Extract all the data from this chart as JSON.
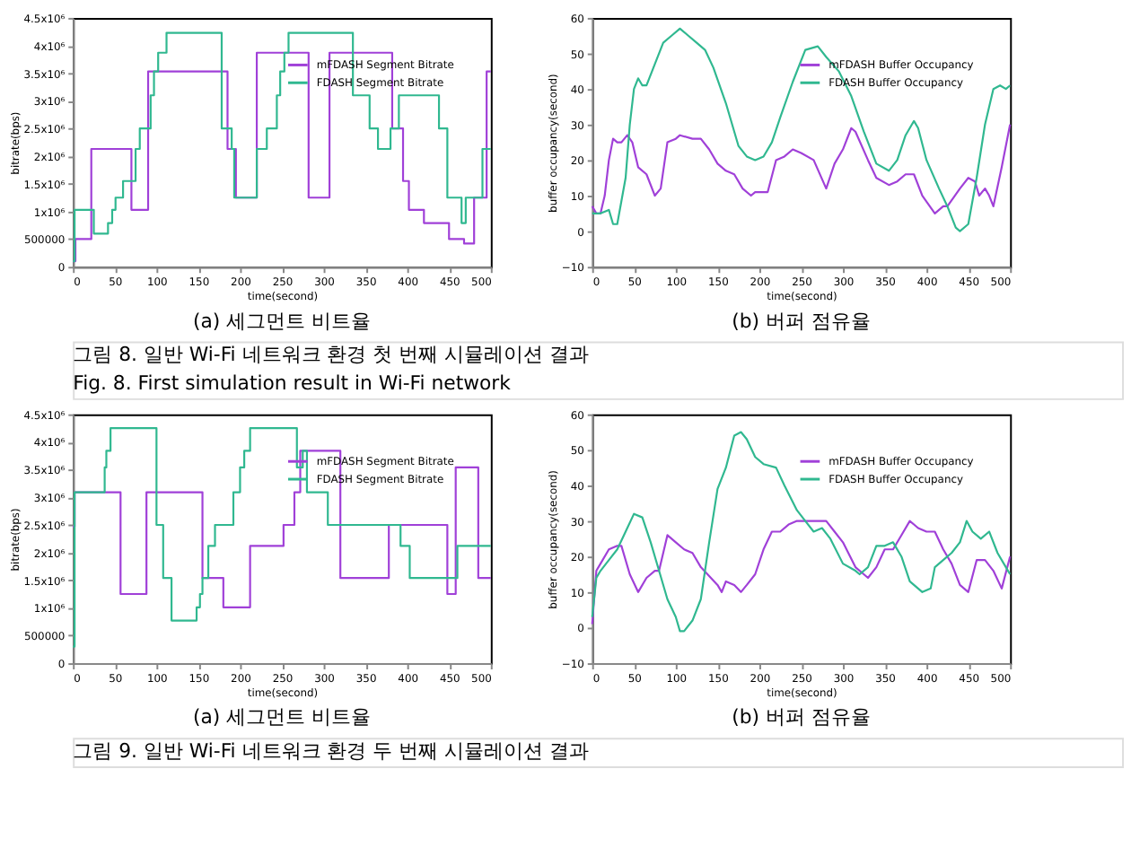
{
  "chart_data": [
    {
      "type": "step",
      "title": "(a) 세그먼트 비트율",
      "xlabel": "time(second)",
      "ylabel": "bitrate(bps)",
      "legend": "top right",
      "grid": false,
      "xlim": [
        0,
        500
      ],
      "xticks": [
        0,
        50,
        100,
        150,
        200,
        250,
        300,
        350,
        400,
        450,
        500
      ],
      "ylim": [
        0,
        4500000
      ],
      "yticks": [
        0,
        {
          "value": 500000,
          "label": "500000"
        },
        {
          "value": 1000000,
          "label": "1x10⁶"
        },
        {
          "value": 1500000,
          "label": "1.5x10⁶"
        },
        {
          "value": 2000000,
          "label": "2x10⁶"
        },
        {
          "value": 2500000,
          "label": "2.5x10⁶"
        },
        {
          "value": 3000000,
          "label": "3x10⁶"
        },
        {
          "value": 3500000,
          "label": "3.5x10⁶"
        },
        {
          "value": 4000000,
          "label": "4x10⁶"
        },
        {
          "value": 4500000,
          "label": "4.5x10⁶"
        }
      ],
      "series": [
        {
          "name": "mFDASH Segment Bitrate",
          "color": "#a040d8",
          "x": [
            0,
            3,
            22,
            70,
            90,
            185,
            195,
            220,
            282,
            307,
            382,
            395,
            402,
            420,
            450,
            468,
            480,
            495,
            500
          ],
          "values": [
            100000,
            500000,
            2130000,
            1030000,
            3530000,
            2130000,
            1250000,
            3870000,
            1250000,
            3870000,
            2500000,
            1550000,
            1030000,
            790000,
            500000,
            420000,
            1250000,
            3530000,
            3530000
          ]
        },
        {
          "name": "FDASH Segment Bitrate",
          "color": "#30b890",
          "x": [
            0,
            2,
            25,
            42,
            47,
            51,
            60,
            75,
            80,
            93,
            97,
            102,
            112,
            178,
            190,
            193,
            220,
            232,
            244,
            248,
            253,
            258,
            335,
            355,
            365,
            380,
            390,
            438,
            448,
            465,
            470,
            490,
            500
          ],
          "values": [
            100000,
            1030000,
            600000,
            790000,
            1030000,
            1250000,
            1550000,
            2130000,
            2500000,
            3100000,
            3530000,
            3870000,
            4230000,
            2500000,
            2130000,
            1250000,
            2130000,
            2500000,
            3100000,
            3530000,
            3870000,
            4230000,
            3100000,
            2500000,
            2130000,
            2500000,
            3100000,
            2500000,
            1250000,
            790000,
            1250000,
            2130000,
            2130000
          ]
        }
      ]
    },
    {
      "type": "line",
      "title": "(b) 버퍼 점유율",
      "xlabel": "time(second)",
      "ylabel": "buffer occupancy(second)",
      "legend": "top right",
      "grid": false,
      "annotations": [
        "그림 8. 일반 Wi-Fi 네트워크 환경 첫 번째 시뮬레이션 결과",
        "Fig. 8. First simulation result in Wi-Fi network"
      ],
      "xlim": [
        0,
        500
      ],
      "xticks": [
        0,
        50,
        100,
        150,
        200,
        250,
        300,
        350,
        400,
        450,
        500
      ],
      "ylim": [
        -10,
        60
      ],
      "yticks": [
        -10,
        0,
        10,
        20,
        30,
        40,
        50,
        60
      ],
      "series": [
        {
          "name": "mFDASH Buffer Occupancy",
          "color": "#a040d8",
          "x": [
            0,
            5,
            10,
            15,
            20,
            25,
            30,
            35,
            42,
            48,
            55,
            65,
            75,
            82,
            90,
            100,
            105,
            120,
            130,
            140,
            150,
            160,
            170,
            180,
            190,
            195,
            210,
            220,
            230,
            240,
            250,
            265,
            280,
            290,
            300,
            310,
            315,
            330,
            340,
            355,
            365,
            375,
            385,
            395,
            410,
            420,
            425,
            440,
            450,
            458,
            463,
            470,
            475,
            480,
            490,
            500
          ],
          "values": [
            7,
            5,
            5,
            10,
            20,
            26,
            25,
            25,
            27,
            25,
            18,
            16,
            10,
            12,
            25,
            26,
            27,
            26,
            26,
            23,
            19,
            17,
            16,
            12,
            10,
            11,
            11,
            20,
            21,
            23,
            22,
            20,
            12,
            19,
            23,
            29,
            28,
            20,
            15,
            13,
            14,
            16,
            16,
            10,
            5,
            7,
            7,
            12,
            15,
            14,
            10,
            12,
            10,
            7,
            18,
            30
          ]
        },
        {
          "name": "FDASH Buffer Occupancy",
          "color": "#30b890",
          "x": [
            0,
            10,
            20,
            25,
            30,
            40,
            45,
            50,
            55,
            60,
            65,
            75,
            85,
            95,
            105,
            115,
            125,
            135,
            145,
            160,
            175,
            185,
            195,
            205,
            215,
            225,
            240,
            255,
            270,
            280,
            295,
            310,
            325,
            340,
            355,
            365,
            375,
            385,
            390,
            400,
            415,
            425,
            435,
            440,
            450,
            460,
            470,
            480,
            488,
            495,
            500
          ],
          "values": [
            5,
            5,
            6,
            2,
            2,
            15,
            30,
            40,
            43,
            41,
            41,
            47,
            53,
            55,
            57,
            55,
            53,
            51,
            46,
            36,
            24,
            21,
            20,
            21,
            25,
            32,
            42,
            51,
            52,
            49,
            45,
            38,
            28,
            19,
            17,
            20,
            27,
            31,
            29,
            20,
            12,
            7,
            1,
            0,
            2,
            15,
            30,
            40,
            41,
            40,
            41
          ]
        }
      ]
    },
    {
      "type": "step",
      "title": "(a) 세그먼트 비트율",
      "xlabel": "time(second)",
      "ylabel": "bitrate(bps)",
      "legend": "top right",
      "grid": false,
      "xlim": [
        0,
        500
      ],
      "xticks": [
        0,
        50,
        100,
        150,
        200,
        250,
        300,
        350,
        400,
        450,
        500
      ],
      "ylim": [
        0,
        4500000
      ],
      "yticks": [
        0,
        {
          "value": 500000,
          "label": "500000"
        },
        {
          "value": 1000000,
          "label": "1x10⁶"
        },
        {
          "value": 1500000,
          "label": "1.5x10⁶"
        },
        {
          "value": 2000000,
          "label": "2x10⁶"
        },
        {
          "value": 2500000,
          "label": "2.5x10⁶"
        },
        {
          "value": 3000000,
          "label": "3x10⁶"
        },
        {
          "value": 3500000,
          "label": "3.5x10⁶"
        },
        {
          "value": 4000000,
          "label": "4x10⁶"
        },
        {
          "value": 4500000,
          "label": "4.5x10⁶"
        }
      ],
      "series": [
        {
          "name": "mFDASH Segment Bitrate",
          "color": "#a040d8",
          "x": [
            0,
            2,
            57,
            88,
            155,
            180,
            212,
            252,
            265,
            272,
            320,
            378,
            448,
            458,
            485,
            500
          ],
          "values": [
            2470000,
            3090000,
            1250000,
            3090000,
            1540000,
            1010000,
            2120000,
            2500000,
            3090000,
            3840000,
            1540000,
            2500000,
            1250000,
            3540000,
            1540000,
            1540000
          ]
        },
        {
          "name": "FDASH Segment Bitrate",
          "color": "#30b890",
          "x": [
            0,
            2,
            38,
            40,
            45,
            100,
            108,
            118,
            148,
            152,
            155,
            162,
            170,
            192,
            200,
            205,
            212,
            268,
            275,
            280,
            305,
            392,
            403,
            460,
            500
          ],
          "values": [
            300000,
            3090000,
            3540000,
            3840000,
            4250000,
            2500000,
            1540000,
            770000,
            1010000,
            1250000,
            1540000,
            2120000,
            2500000,
            3090000,
            3540000,
            3840000,
            4250000,
            3540000,
            3840000,
            3090000,
            2500000,
            2120000,
            1540000,
            2120000,
            2120000
          ]
        }
      ]
    },
    {
      "type": "line",
      "title": "(b) 버퍼 점유율",
      "xlabel": "time(second)",
      "ylabel": "buffer occupancy(second)",
      "legend": "top right",
      "grid": false,
      "annotations": [
        "그림 9. 일반 Wi-Fi 네트워크 환경 두 번째 시뮬레이션 결과"
      ],
      "xlim": [
        0,
        500
      ],
      "xticks": [
        0,
        50,
        100,
        150,
        200,
        250,
        300,
        350,
        400,
        450,
        500
      ],
      "ylim": [
        -10,
        60
      ],
      "yticks": [
        -10,
        0,
        10,
        20,
        30,
        40,
        50,
        60
      ],
      "series": [
        {
          "name": "mFDASH Buffer Occupancy",
          "color": "#a040d8",
          "x": [
            0,
            3,
            5,
            10,
            20,
            30,
            35,
            45,
            55,
            65,
            75,
            80,
            90,
            100,
            110,
            120,
            130,
            150,
            155,
            160,
            170,
            178,
            185,
            195,
            205,
            215,
            225,
            235,
            245,
            255,
            270,
            280,
            290,
            300,
            315,
            325,
            330,
            340,
            350,
            360,
            370,
            380,
            390,
            400,
            410,
            420,
            430,
            440,
            450,
            460,
            470,
            480,
            490,
            500
          ],
          "values": [
            1,
            10,
            16,
            18,
            22,
            23,
            23,
            15,
            10,
            14,
            16,
            16,
            26,
            24,
            22,
            21,
            17,
            12,
            10,
            13,
            12,
            10,
            12,
            15,
            22,
            27,
            27,
            29,
            30,
            30,
            30,
            30,
            27,
            24,
            17,
            15,
            14,
            17,
            22,
            22,
            26,
            30,
            28,
            27,
            27,
            22,
            18,
            12,
            10,
            19,
            19,
            16,
            11,
            20
          ]
        },
        {
          "name": "FDASH Buffer Occupancy",
          "color": "#30b890",
          "x": [
            0,
            5,
            10,
            20,
            30,
            40,
            50,
            60,
            70,
            80,
            90,
            100,
            105,
            110,
            120,
            130,
            140,
            150,
            160,
            170,
            178,
            185,
            195,
            205,
            220,
            230,
            245,
            255,
            265,
            275,
            285,
            300,
            315,
            320,
            330,
            340,
            350,
            360,
            370,
            380,
            395,
            405,
            410,
            420,
            430,
            440,
            448,
            455,
            465,
            475,
            485,
            495,
            500
          ],
          "values": [
            3,
            14,
            16,
            19,
            22,
            27,
            32,
            31,
            24,
            16,
            8,
            3,
            -1,
            -1,
            2,
            8,
            24,
            39,
            45,
            54,
            55,
            53,
            48,
            46,
            45,
            40,
            33,
            30,
            27,
            28,
            25,
            18,
            16,
            15,
            17,
            23,
            23,
            24,
            20,
            13,
            10,
            11,
            17,
            19,
            21,
            24,
            30,
            27,
            25,
            27,
            21,
            17,
            15
          ]
        }
      ]
    }
  ]
}
